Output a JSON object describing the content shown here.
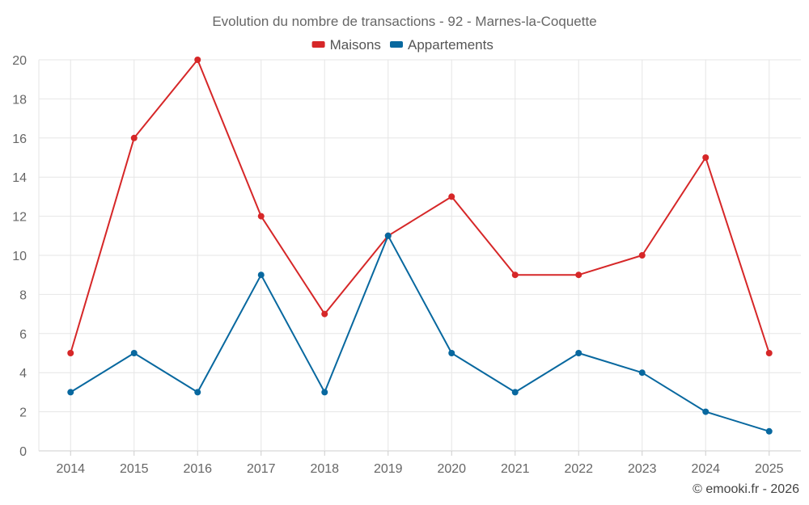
{
  "chart_data": {
    "type": "line",
    "title": "Evolution du nombre de transactions - 92 - Marnes-la-Coquette",
    "categories": [
      "2014",
      "2015",
      "2016",
      "2017",
      "2018",
      "2019",
      "2020",
      "2021",
      "2022",
      "2023",
      "2024",
      "2025"
    ],
    "series": [
      {
        "name": "Maisons",
        "color": "#d62728",
        "values": [
          5,
          16,
          20,
          12,
          7,
          11,
          13,
          9,
          9,
          10,
          15,
          5
        ]
      },
      {
        "name": "Appartements",
        "color": "#08689f",
        "values": [
          3,
          5,
          3,
          9,
          3,
          11,
          5,
          3,
          5,
          4,
          2,
          1
        ]
      }
    ],
    "ylim": [
      0,
      20
    ],
    "yticks": [
      0,
      2,
      4,
      6,
      8,
      10,
      12,
      14,
      16,
      18,
      20
    ],
    "grid": true,
    "legend_position": "top-center",
    "xlabel": "",
    "ylabel": ""
  },
  "credit": "© emooki.fr - 2026"
}
